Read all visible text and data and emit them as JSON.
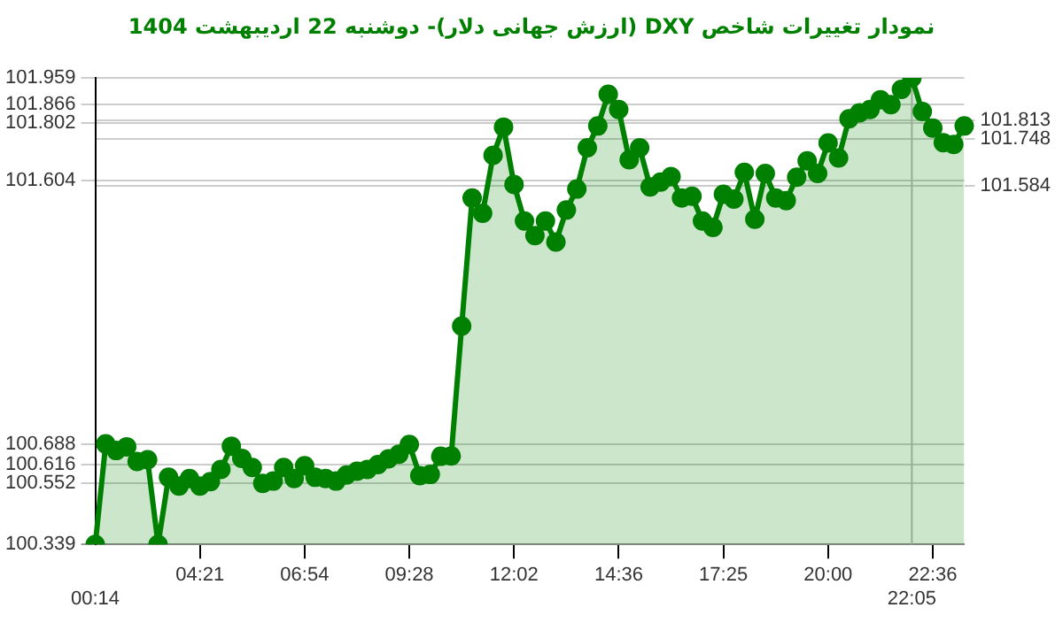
{
  "chart_data": {
    "type": "area",
    "title": "نمودار تغییرات شاخص DXY (ارزش جهانی دلار)-  دوشنبه  22 اردیبهشت 1404",
    "categories": [
      "00:14",
      null,
      null,
      null,
      null,
      null,
      null,
      null,
      null,
      null,
      "04:21",
      null,
      null,
      null,
      null,
      null,
      null,
      null,
      null,
      null,
      "06:54",
      null,
      null,
      null,
      null,
      null,
      null,
      null,
      null,
      null,
      "09:28",
      null,
      null,
      null,
      null,
      null,
      null,
      null,
      null,
      null,
      "12:02",
      null,
      null,
      null,
      null,
      null,
      null,
      null,
      null,
      null,
      "14:36",
      null,
      null,
      null,
      null,
      null,
      null,
      null,
      null,
      null,
      "17:25",
      null,
      null,
      null,
      null,
      null,
      null,
      null,
      null,
      null,
      "20:00",
      null,
      null,
      null,
      null,
      null,
      null,
      null,
      "22:05",
      null,
      "22:36",
      null,
      null,
      null
    ],
    "series": [
      {
        "color": "#008000",
        "values": [
          100.339,
          100.688,
          100.665,
          100.678,
          100.627,
          100.633,
          100.339,
          100.572,
          100.542,
          100.568,
          100.542,
          100.557,
          100.599,
          100.68,
          100.638,
          100.606,
          100.551,
          100.559,
          100.606,
          100.568,
          100.612,
          100.572,
          100.568,
          100.559,
          100.58,
          100.593,
          100.599,
          100.616,
          100.636,
          100.652,
          100.686,
          100.578,
          100.582,
          100.645,
          100.646,
          101.097,
          101.542,
          101.489,
          101.69,
          101.788,
          101.589,
          101.462,
          101.411,
          101.462,
          101.389,
          101.5,
          101.573,
          101.716,
          101.792,
          101.902,
          101.849,
          101.675,
          101.716,
          101.58,
          101.597,
          101.616,
          101.542,
          101.548,
          101.462,
          101.44,
          101.555,
          101.538,
          101.631,
          101.468,
          101.627,
          101.542,
          101.533,
          101.614,
          101.671,
          101.627,
          101.733,
          101.681,
          101.817,
          101.838,
          101.849,
          101.883,
          101.866,
          101.919,
          101.959,
          101.842,
          101.785,
          101.734,
          101.728,
          101.792
        ]
      }
    ],
    "ylim": [
      100.339,
      101.959
    ],
    "yticks": [
      100.339,
      100.552,
      100.616,
      100.688,
      101.604,
      101.802,
      101.866,
      101.959
    ],
    "y2lim": [
      100.339,
      101.959
    ],
    "y2ticks": [
      101.584,
      101.748,
      101.813
    ],
    "ref_lines": [
      {
        "axis": "x",
        "value": "22:05",
        "color": "#bbbbbb"
      }
    ],
    "grid": "y",
    "marker": "circle",
    "line_style": "solid",
    "legend": false
  }
}
